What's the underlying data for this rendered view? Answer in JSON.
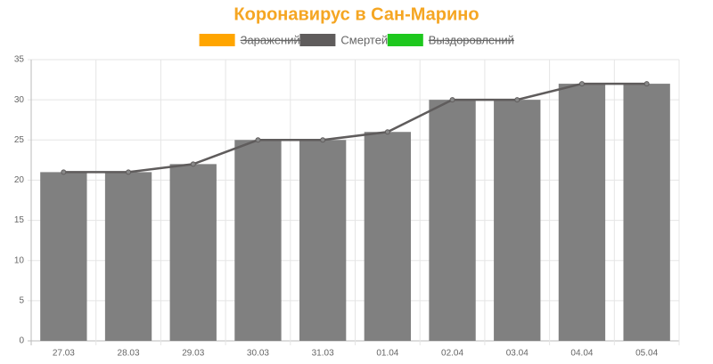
{
  "chart_data": {
    "type": "bar",
    "title": "Коронавирус в Сан-Марино",
    "legend": [
      {
        "name": "Заражений",
        "color": "#ffa500",
        "hidden": true
      },
      {
        "name": "Смертей",
        "color": "#5f5c5c",
        "hidden": false
      },
      {
        "name": "Выздоровлений",
        "color": "#1ec81e",
        "hidden": true
      }
    ],
    "categories": [
      "27.03",
      "28.03",
      "29.03",
      "30.03",
      "31.03",
      "01.04",
      "02.04",
      "03.04",
      "04.04",
      "05.04"
    ],
    "series": [
      {
        "name": "Смертей",
        "color": "#808080",
        "line_color": "#5f5c5c",
        "values": [
          21,
          21,
          22,
          25,
          25,
          26,
          30,
          30,
          32,
          32
        ]
      }
    ],
    "ylim": [
      0,
      35
    ],
    "yticks": [
      0,
      5,
      10,
      15,
      20,
      25,
      30,
      35
    ],
    "grid": true
  }
}
